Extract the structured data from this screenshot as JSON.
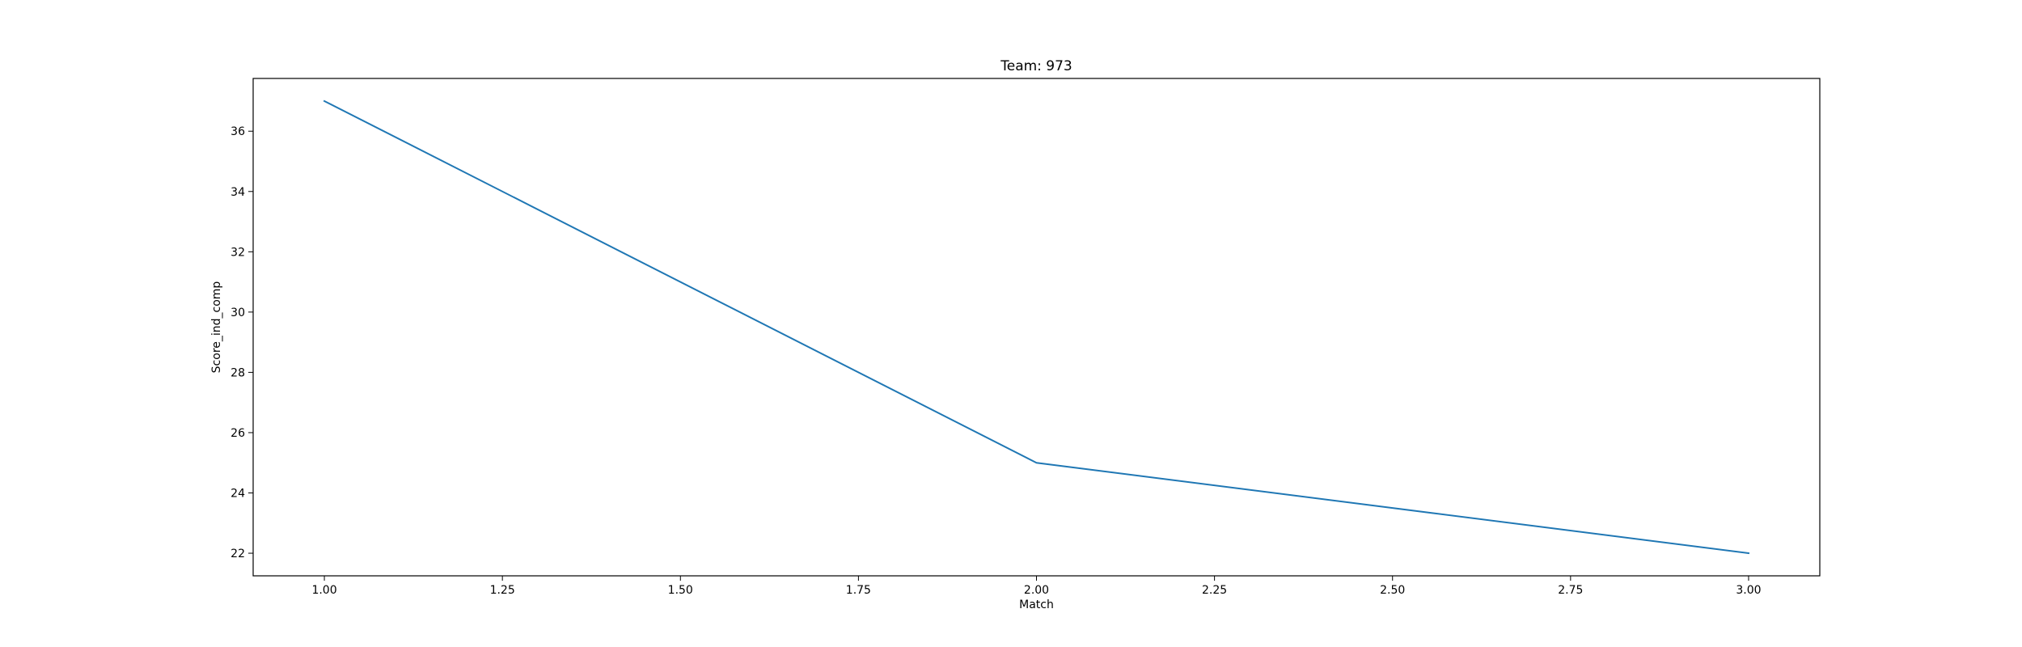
{
  "chart_data": {
    "type": "line",
    "title": "Team: 973",
    "xlabel": "Match",
    "ylabel": "Score_ind_comp",
    "xlim": [
      0.9,
      3.1
    ],
    "ylim": [
      21.25,
      37.75
    ],
    "xticks": [
      1.0,
      1.25,
      1.5,
      1.75,
      2.0,
      2.25,
      2.5,
      2.75,
      3.0
    ],
    "xtick_labels": [
      "1.00",
      "1.25",
      "1.50",
      "1.75",
      "2.00",
      "2.25",
      "2.50",
      "2.75",
      "3.00"
    ],
    "yticks": [
      22,
      24,
      26,
      28,
      30,
      32,
      34,
      36
    ],
    "ytick_labels": [
      "22",
      "24",
      "26",
      "28",
      "30",
      "32",
      "34",
      "36"
    ],
    "grid": false,
    "series": [
      {
        "name": "Score_ind_comp",
        "color": "#1f77b4",
        "x": [
          1,
          2,
          3
        ],
        "y": [
          37,
          25,
          22
        ]
      }
    ]
  }
}
